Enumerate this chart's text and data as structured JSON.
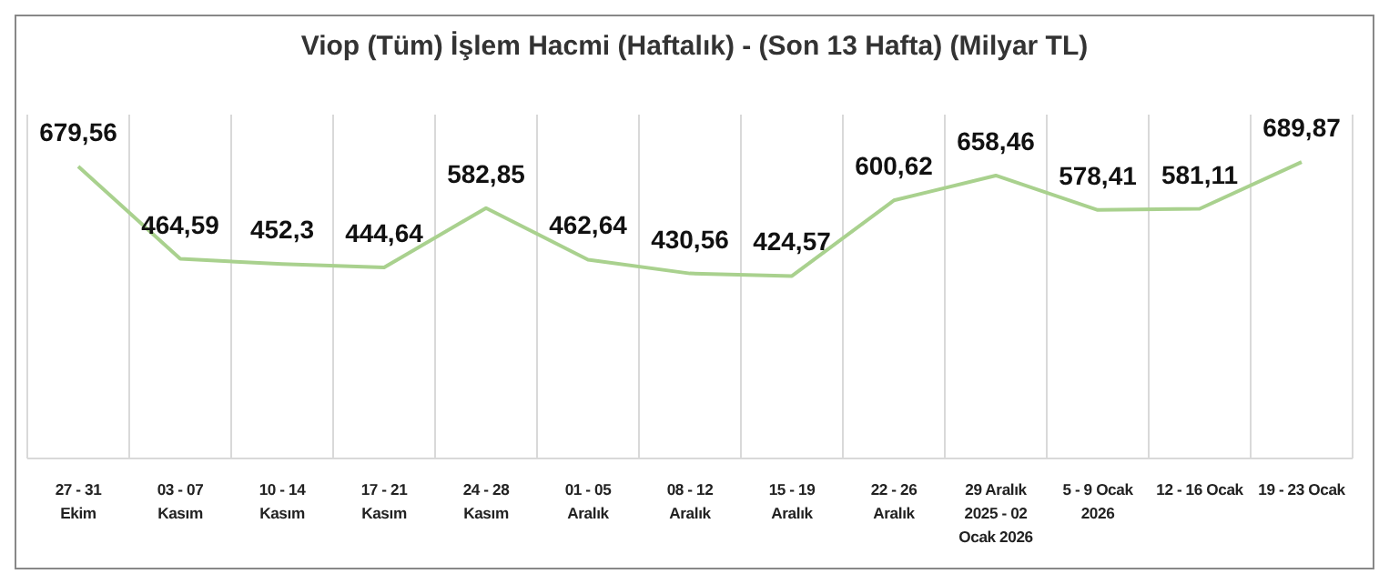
{
  "chart_data": {
    "type": "line",
    "title": "Viop (Tüm) İşlem Hacmi (Haftalık) - (Son 13 Hafta) (Milyar TL)",
    "categories": [
      "27 - 31\nEkim",
      "03 - 07\nKasım",
      "10 - 14\nKasım",
      "17 - 21\nKasım",
      "24 - 28\nKasım",
      "01 - 05\nAralık",
      "08 - 12\nAralık",
      "15 - 19\nAralık",
      "22 - 26\nAralık",
      "29 Aralık\n2025 - 02\nOcak 2026",
      "5 - 9 Ocak\n2026",
      "12 - 16 Ocak",
      "19 - 23 Ocak"
    ],
    "series": [
      {
        "color": "#a9d18e",
        "values": [
          679.56,
          464.59,
          452.3,
          444.64,
          582.85,
          462.64,
          430.56,
          424.57,
          600.62,
          658.46,
          578.41,
          581.11,
          689.87
        ],
        "value_labels": [
          "679,56",
          "464,59",
          "452,3",
          "444,64",
          "582,85",
          "462,64",
          "430,56",
          "424,57",
          "600,62",
          "658,46",
          "578,41",
          "581,11",
          "689,87"
        ]
      }
    ],
    "grid": "x",
    "marker": "none",
    "line_style": "solid"
  }
}
